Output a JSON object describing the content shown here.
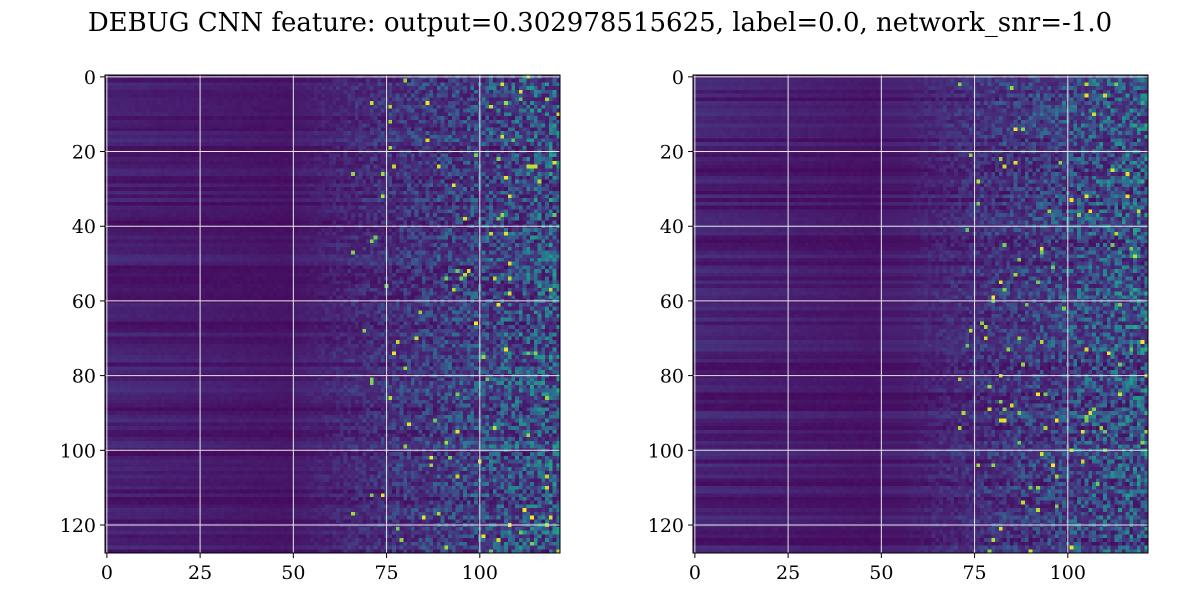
{
  "figure": {
    "title": "DEBUG CNN feature: output=0.302978515625, label=0.0, network_snr=-1.0"
  },
  "chart_data": [
    {
      "type": "heatmap",
      "title": "",
      "xlabel": "",
      "ylabel": "",
      "xlim": [
        -0.5,
        121.5
      ],
      "ylim": [
        127.5,
        -0.5
      ],
      "x_ticks": [
        0,
        25,
        50,
        75,
        100
      ],
      "x_tick_labels": [
        "0",
        "25",
        "50",
        "75",
        "100"
      ],
      "y_ticks": [
        0,
        20,
        40,
        60,
        80,
        100,
        120
      ],
      "y_tick_labels": [
        "0",
        "20",
        "40",
        "60",
        "80",
        "100",
        "120"
      ],
      "rows": 128,
      "cols": 122,
      "colormap": "viridis",
      "grid": true,
      "legend": "none",
      "pattern": "low values (dark purple) for columns 0-50, increasingly noisy higher values for columns 60-121",
      "noise_onset_col": 65
    },
    {
      "type": "heatmap",
      "title": "",
      "xlabel": "",
      "ylabel": "",
      "xlim": [
        -0.5,
        121.5
      ],
      "ylim": [
        127.5,
        -0.5
      ],
      "x_ticks": [
        0,
        25,
        50,
        75,
        100
      ],
      "x_tick_labels": [
        "0",
        "25",
        "50",
        "75",
        "100"
      ],
      "y_ticks": [
        0,
        20,
        40,
        60,
        80,
        100,
        120
      ],
      "y_tick_labels": [
        "0",
        "20",
        "40",
        "60",
        "80",
        "100",
        "120"
      ],
      "rows": 128,
      "cols": 122,
      "colormap": "viridis",
      "grid": true,
      "legend": "none",
      "pattern": "low values (dark purple) for columns 0-50, increasingly noisy higher values for columns 60-121",
      "noise_onset_col": 70
    }
  ],
  "colors": {
    "background": "#ffffff",
    "grid": "#e6e6e6",
    "axes": "#000000"
  }
}
